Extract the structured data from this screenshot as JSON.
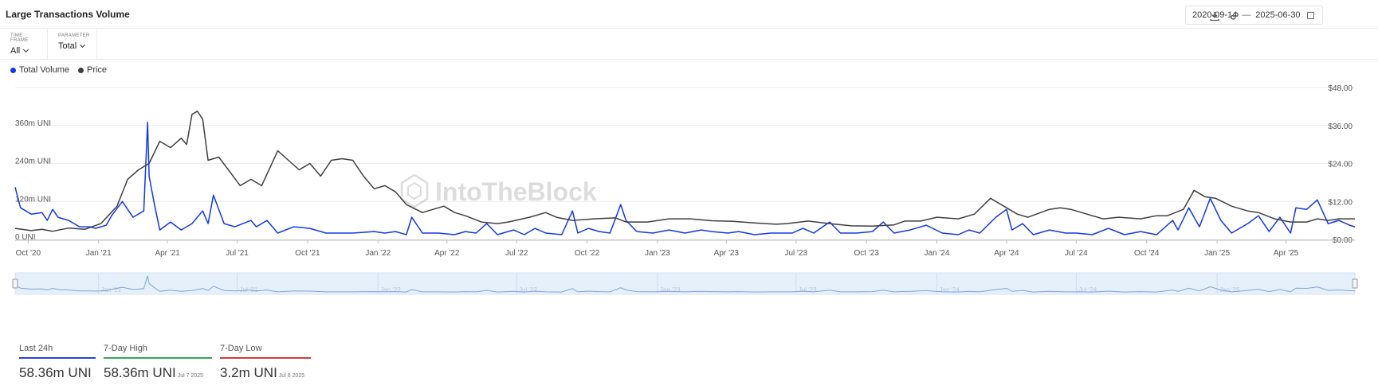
{
  "header": {
    "title": "Large Transactions Volume",
    "date_from": "2020-09-14",
    "date_sep": "—",
    "date_to": "2025-06-30"
  },
  "filters": {
    "time_frame_label": "TIME FRAME",
    "time_frame_value": "All",
    "parameter_label": "PARAMETER",
    "parameter_value": "Total"
  },
  "watermark": "IntoTheBlock",
  "stats": [
    {
      "label": "Last 24h",
      "value": "58.36m UNI",
      "date": "",
      "color": "#2746d8"
    },
    {
      "label": "7-Day High",
      "value": "58.36m UNI",
      "date": "Jul 7 2025",
      "color": "#3aa55a"
    },
    {
      "label": "7-Day Low",
      "value": "3.2m UNI",
      "date": "Jul 6 2025",
      "color": "#d23b3b"
    }
  ],
  "chart_data": {
    "type": "line",
    "title": "Large Transactions Volume",
    "legend_position": "top-left",
    "grid": true,
    "x_range": [
      "2020-09-14",
      "2025-06-30"
    ],
    "x_ticks": [
      "Oct '20",
      "Jan '21",
      "Apr '21",
      "Jul '21",
      "Oct '21",
      "Jan '22",
      "Apr '22",
      "Jul '22",
      "Oct '22",
      "Jan '23",
      "Apr '23",
      "Jul '23",
      "Oct '23",
      "Jan '24",
      "Apr '24",
      "Jul '24",
      "Oct '24",
      "Jan '25",
      "Apr '25"
    ],
    "y_left": {
      "ticks": [
        "0 UNI",
        "120m UNI",
        "240m UNI",
        "360m UNI"
      ],
      "range": [
        0,
        480
      ],
      "unit": "m UNI"
    },
    "y_right": {
      "ticks": [
        "$0.00",
        "$12.00",
        "$24.00",
        "$36.00",
        "$48.00"
      ],
      "range": [
        0,
        48
      ]
    },
    "navigator_ticks": [
      "Jan '21",
      "Jul '21",
      "Jan '22",
      "Jul '22",
      "Jan '23",
      "Jul '23",
      "Jan '24",
      "Jul '24",
      "Jan '25"
    ],
    "series": [
      {
        "name": "Total Volume",
        "color": "#1238e8",
        "axis": "left",
        "points": [
          [
            "2020-09-14",
            165
          ],
          [
            "2020-09-21",
            100
          ],
          [
            "2020-10-05",
            80
          ],
          [
            "2020-10-19",
            85
          ],
          [
            "2020-10-26",
            60
          ],
          [
            "2020-11-02",
            95
          ],
          [
            "2020-11-09",
            70
          ],
          [
            "2020-11-23",
            60
          ],
          [
            "2020-12-07",
            40
          ],
          [
            "2020-12-21",
            40
          ],
          [
            "2020-12-28",
            35
          ],
          [
            "2021-01-11",
            45
          ],
          [
            "2021-01-18",
            75
          ],
          [
            "2021-02-01",
            120
          ],
          [
            "2021-02-15",
            70
          ],
          [
            "2021-03-01",
            90
          ],
          [
            "2021-03-06",
            370
          ],
          [
            "2021-03-08",
            200
          ],
          [
            "2021-03-15",
            110
          ],
          [
            "2021-03-22",
            30
          ],
          [
            "2021-04-05",
            55
          ],
          [
            "2021-04-19",
            30
          ],
          [
            "2021-05-03",
            50
          ],
          [
            "2021-05-17",
            90
          ],
          [
            "2021-05-24",
            50
          ],
          [
            "2021-05-31",
            140
          ],
          [
            "2021-06-14",
            50
          ],
          [
            "2021-06-28",
            40
          ],
          [
            "2021-07-19",
            60
          ],
          [
            "2021-07-26",
            40
          ],
          [
            "2021-08-09",
            60
          ],
          [
            "2021-08-23",
            20
          ],
          [
            "2021-09-13",
            40
          ],
          [
            "2021-10-04",
            35
          ],
          [
            "2021-10-25",
            20
          ],
          [
            "2021-11-29",
            20
          ],
          [
            "2021-12-27",
            25
          ],
          [
            "2022-01-10",
            20
          ],
          [
            "2022-01-24",
            25
          ],
          [
            "2022-02-07",
            15
          ],
          [
            "2022-02-14",
            70
          ],
          [
            "2022-02-28",
            20
          ],
          [
            "2022-03-21",
            20
          ],
          [
            "2022-04-11",
            15
          ],
          [
            "2022-04-25",
            25
          ],
          [
            "2022-05-09",
            20
          ],
          [
            "2022-05-23",
            50
          ],
          [
            "2022-06-06",
            15
          ],
          [
            "2022-06-27",
            30
          ],
          [
            "2022-07-11",
            15
          ],
          [
            "2022-07-25",
            35
          ],
          [
            "2022-08-08",
            20
          ],
          [
            "2022-08-29",
            15
          ],
          [
            "2022-09-12",
            90
          ],
          [
            "2022-09-19",
            20
          ],
          [
            "2022-10-03",
            35
          ],
          [
            "2022-10-17",
            25
          ],
          [
            "2022-10-31",
            20
          ],
          [
            "2022-11-14",
            110
          ],
          [
            "2022-11-21",
            60
          ],
          [
            "2022-12-05",
            25
          ],
          [
            "2022-12-26",
            20
          ],
          [
            "2023-01-16",
            30
          ],
          [
            "2023-02-06",
            20
          ],
          [
            "2023-02-27",
            30
          ],
          [
            "2023-03-13",
            25
          ],
          [
            "2023-04-03",
            20
          ],
          [
            "2023-04-17",
            25
          ],
          [
            "2023-05-08",
            15
          ],
          [
            "2023-05-29",
            20
          ],
          [
            "2023-06-26",
            20
          ],
          [
            "2023-07-10",
            35
          ],
          [
            "2023-07-24",
            20
          ],
          [
            "2023-08-14",
            55
          ],
          [
            "2023-08-28",
            20
          ],
          [
            "2023-09-18",
            20
          ],
          [
            "2023-10-09",
            25
          ],
          [
            "2023-10-23",
            55
          ],
          [
            "2023-11-06",
            20
          ],
          [
            "2023-11-27",
            30
          ],
          [
            "2023-12-18",
            45
          ],
          [
            "2024-01-08",
            20
          ],
          [
            "2024-01-29",
            15
          ],
          [
            "2024-02-12",
            30
          ],
          [
            "2024-02-26",
            20
          ],
          [
            "2024-03-18",
            70
          ],
          [
            "2024-04-01",
            95
          ],
          [
            "2024-04-08",
            30
          ],
          [
            "2024-04-22",
            50
          ],
          [
            "2024-05-06",
            15
          ],
          [
            "2024-05-27",
            30
          ],
          [
            "2024-06-17",
            20
          ],
          [
            "2024-07-01",
            20
          ],
          [
            "2024-07-22",
            15
          ],
          [
            "2024-08-12",
            35
          ],
          [
            "2024-09-02",
            15
          ],
          [
            "2024-09-23",
            25
          ],
          [
            "2024-10-14",
            15
          ],
          [
            "2024-11-04",
            60
          ],
          [
            "2024-11-11",
            30
          ],
          [
            "2024-11-25",
            100
          ],
          [
            "2024-12-09",
            40
          ],
          [
            "2024-12-23",
            130
          ],
          [
            "2025-01-06",
            60
          ],
          [
            "2025-01-20",
            20
          ],
          [
            "2025-02-10",
            50
          ],
          [
            "2025-02-24",
            75
          ],
          [
            "2025-03-10",
            25
          ],
          [
            "2025-03-24",
            70
          ],
          [
            "2025-04-07",
            20
          ],
          [
            "2025-04-14",
            100
          ],
          [
            "2025-04-28",
            95
          ],
          [
            "2025-05-12",
            125
          ],
          [
            "2025-05-26",
            50
          ],
          [
            "2025-06-09",
            60
          ],
          [
            "2025-06-23",
            45
          ],
          [
            "2025-06-30",
            40
          ]
        ]
      },
      {
        "name": "Price",
        "color": "#3f3f3f",
        "axis": "right",
        "points": [
          [
            "2020-09-14",
            3.5
          ],
          [
            "2020-10-05",
            2.8
          ],
          [
            "2020-10-19",
            3.2
          ],
          [
            "2020-11-02",
            2.6
          ],
          [
            "2020-11-23",
            3.6
          ],
          [
            "2020-12-14",
            3.2
          ],
          [
            "2021-01-04",
            5.0
          ],
          [
            "2021-01-25",
            10.5
          ],
          [
            "2021-02-08",
            19
          ],
          [
            "2021-02-22",
            22
          ],
          [
            "2021-03-08",
            24
          ],
          [
            "2021-03-22",
            31
          ],
          [
            "2021-04-05",
            29
          ],
          [
            "2021-04-19",
            32
          ],
          [
            "2021-04-26",
            30
          ],
          [
            "2021-05-03",
            39.5
          ],
          [
            "2021-05-10",
            40.5
          ],
          [
            "2021-05-17",
            38
          ],
          [
            "2021-05-24",
            25
          ],
          [
            "2021-06-07",
            26
          ],
          [
            "2021-06-21",
            21.5
          ],
          [
            "2021-07-05",
            17
          ],
          [
            "2021-07-19",
            19
          ],
          [
            "2021-08-02",
            17
          ],
          [
            "2021-08-23",
            28
          ],
          [
            "2021-09-06",
            25
          ],
          [
            "2021-09-20",
            22
          ],
          [
            "2021-10-04",
            24
          ],
          [
            "2021-10-18",
            20
          ],
          [
            "2021-11-01",
            25
          ],
          [
            "2021-11-15",
            25.5
          ],
          [
            "2021-11-29",
            25
          ],
          [
            "2021-12-13",
            20
          ],
          [
            "2021-12-27",
            16
          ],
          [
            "2022-01-10",
            17
          ],
          [
            "2022-01-24",
            15
          ],
          [
            "2022-02-07",
            11
          ],
          [
            "2022-02-28",
            8.5
          ],
          [
            "2022-03-14",
            9.5
          ],
          [
            "2022-03-28",
            10.5
          ],
          [
            "2022-04-11",
            8.5
          ],
          [
            "2022-04-25",
            7.5
          ],
          [
            "2022-05-16",
            5.5
          ],
          [
            "2022-06-06",
            5.0
          ],
          [
            "2022-06-20",
            5.5
          ],
          [
            "2022-07-18",
            7.0
          ],
          [
            "2022-08-08",
            8.5
          ],
          [
            "2022-08-22",
            7.0
          ],
          [
            "2022-09-12",
            6.0
          ],
          [
            "2022-10-10",
            6.5
          ],
          [
            "2022-11-07",
            6.8
          ],
          [
            "2022-11-21",
            5.5
          ],
          [
            "2022-12-19",
            5.5
          ],
          [
            "2023-01-16",
            6.5
          ],
          [
            "2023-02-13",
            6.5
          ],
          [
            "2023-03-13",
            5.9
          ],
          [
            "2023-04-10",
            5.7
          ],
          [
            "2023-05-08",
            5.2
          ],
          [
            "2023-06-05",
            4.8
          ],
          [
            "2023-06-19",
            5.0
          ],
          [
            "2023-07-17",
            5.8
          ],
          [
            "2023-08-14",
            5.0
          ],
          [
            "2023-09-11",
            4.3
          ],
          [
            "2023-10-09",
            4.2
          ],
          [
            "2023-11-06",
            4.6
          ],
          [
            "2023-11-20",
            5.8
          ],
          [
            "2023-12-11",
            5.8
          ],
          [
            "2024-01-01",
            7.0
          ],
          [
            "2024-01-29",
            6.5
          ],
          [
            "2024-02-19",
            8.0
          ],
          [
            "2024-03-11",
            13
          ],
          [
            "2024-03-25",
            11
          ],
          [
            "2024-04-15",
            8.0
          ],
          [
            "2024-04-29",
            7.0
          ],
          [
            "2024-05-27",
            9.5
          ],
          [
            "2024-06-10",
            10
          ],
          [
            "2024-06-24",
            9.5
          ],
          [
            "2024-07-15",
            8.0
          ],
          [
            "2024-08-05",
            6.5
          ],
          [
            "2024-08-26",
            7.0
          ],
          [
            "2024-09-23",
            6.5
          ],
          [
            "2024-10-14",
            7.5
          ],
          [
            "2024-10-28",
            7.5
          ],
          [
            "2024-11-18",
            9.5
          ],
          [
            "2024-12-02",
            15.5
          ],
          [
            "2024-12-16",
            13.5
          ],
          [
            "2024-12-30",
            13.0
          ],
          [
            "2025-01-20",
            10.5
          ],
          [
            "2025-02-10",
            9.0
          ],
          [
            "2025-02-24",
            8.5
          ],
          [
            "2025-03-17",
            6.5
          ],
          [
            "2025-04-07",
            5.5
          ],
          [
            "2025-04-28",
            5.5
          ],
          [
            "2025-05-12",
            6.5
          ],
          [
            "2025-05-26",
            6.0
          ],
          [
            "2025-06-09",
            6.5
          ],
          [
            "2025-06-30",
            6.5
          ]
        ]
      }
    ]
  }
}
